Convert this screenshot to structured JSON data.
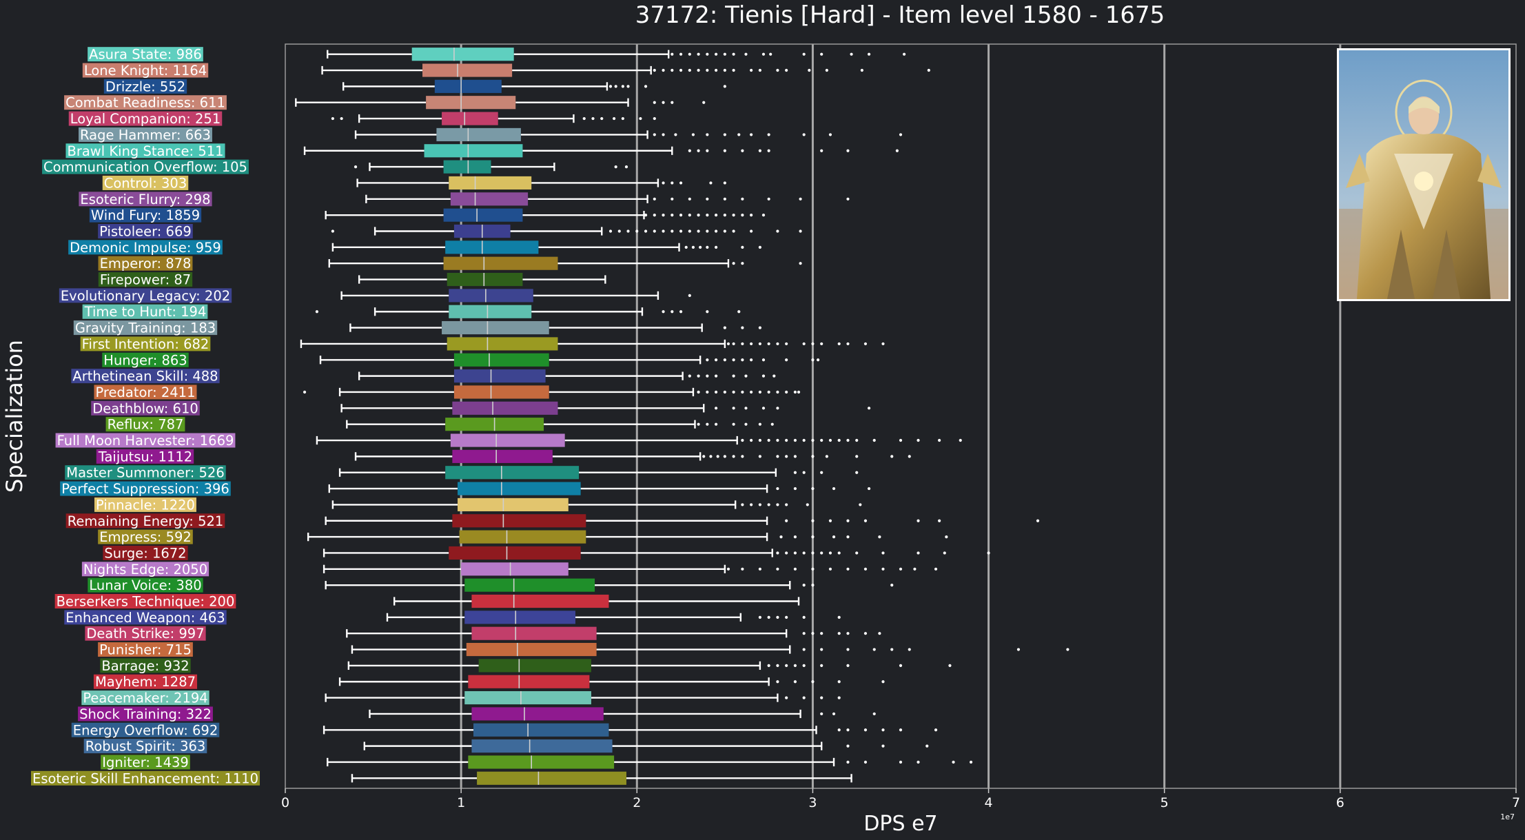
{
  "chart_data": {
    "type": "box",
    "title": "37172: Tienis [Hard] - Item level 1580 - 1675",
    "xlabel": "DPS e7",
    "ylabel": "Specialization",
    "offset_text": "1e7",
    "xlim": [
      0,
      7
    ],
    "xticks": [
      "0",
      "1",
      "2",
      "3",
      "4",
      "5",
      "6",
      "7"
    ],
    "grid": "vertical",
    "units": "1e7 DPS",
    "series": [
      {
        "label": "Asura State: 986",
        "color": "#5fcfbf",
        "whislo": 0.24,
        "q1": 0.72,
        "med": 0.96,
        "q3": 1.3,
        "whishi": 2.18,
        "fliers": [
          2.2,
          2.25,
          2.3,
          2.35,
          2.4,
          2.45,
          2.5,
          2.55,
          2.62,
          2.72,
          2.76,
          2.95,
          3.05,
          3.22,
          3.32,
          3.52
        ]
      },
      {
        "label": "Lone Knight: 1164",
        "color": "#c97e6e",
        "whislo": 0.21,
        "q1": 0.78,
        "med": 0.98,
        "q3": 1.29,
        "whishi": 2.08,
        "fliers": [
          2.1,
          2.15,
          2.2,
          2.25,
          2.3,
          2.35,
          2.4,
          2.45,
          2.5,
          2.55,
          2.65,
          2.7,
          2.8,
          2.85,
          2.98,
          3.08,
          3.28,
          3.66
        ]
      },
      {
        "label": "Drizzle: 552",
        "color": "#1f4f8f",
        "whislo": 0.33,
        "q1": 0.85,
        "med": 1.0,
        "q3": 1.23,
        "whishi": 1.83,
        "fliers": [
          1.85,
          1.88,
          1.92,
          1.95,
          2.05,
          2.5
        ]
      },
      {
        "label": "Combat Readiness: 611",
        "color": "#c88575",
        "whislo": 0.06,
        "q1": 0.8,
        "med": 1.0,
        "q3": 1.31,
        "whishi": 1.95,
        "fliers": [
          2.1,
          2.15,
          2.2,
          2.38
        ]
      },
      {
        "label": "Loyal Companion: 251",
        "color": "#c23e6a",
        "whislo": 0.42,
        "q1": 0.89,
        "med": 1.02,
        "q3": 1.21,
        "whishi": 1.64,
        "fliers": [
          0.27,
          0.32,
          1.7,
          1.75,
          1.8,
          1.87,
          1.92,
          2.02,
          2.1
        ]
      },
      {
        "label": "Rage Hammer: 663",
        "color": "#7a9aa6",
        "whislo": 0.4,
        "q1": 0.86,
        "med": 1.04,
        "q3": 1.34,
        "whishi": 2.06,
        "fliers": [
          2.1,
          2.15,
          2.22,
          2.32,
          2.4,
          2.5,
          2.58,
          2.65,
          2.75,
          2.95,
          3.1,
          3.5
        ]
      },
      {
        "label": "Brawl King Stance: 511",
        "color": "#4ac4b4",
        "whislo": 0.11,
        "q1": 0.79,
        "med": 1.04,
        "q3": 1.35,
        "whishi": 2.2,
        "fliers": [
          2.3,
          2.35,
          2.4,
          2.5,
          2.6,
          2.7,
          2.75,
          3.05,
          3.2,
          3.48
        ]
      },
      {
        "label": "Communication Overflow: 105",
        "color": "#1f8f80",
        "whislo": 0.48,
        "q1": 0.9,
        "med": 1.04,
        "q3": 1.17,
        "whishi": 1.53,
        "fliers": [
          0.4,
          1.88,
          1.94
        ]
      },
      {
        "label": "Control: 303",
        "color": "#d9c060",
        "whislo": 0.41,
        "q1": 0.93,
        "med": 1.08,
        "q3": 1.4,
        "whishi": 2.12,
        "fliers": [
          2.15,
          2.2,
          2.25,
          2.42,
          2.5
        ]
      },
      {
        "label": "Esoteric Flurry: 298",
        "color": "#8a4c99",
        "whislo": 0.46,
        "q1": 0.94,
        "med": 1.08,
        "q3": 1.38,
        "whishi": 2.06,
        "fliers": [
          2.1,
          2.2,
          2.3,
          2.4,
          2.5,
          2.6,
          2.75,
          2.93,
          3.2
        ]
      },
      {
        "label": "Wind Fury: 1859",
        "color": "#204f8f",
        "whislo": 0.23,
        "q1": 0.9,
        "med": 1.09,
        "q3": 1.35,
        "whishi": 2.04,
        "fliers": [
          2.05,
          2.1,
          2.15,
          2.2,
          2.25,
          2.3,
          2.35,
          2.4,
          2.45,
          2.5,
          2.55,
          2.6,
          2.65,
          2.72
        ]
      },
      {
        "label": "Pistoleer: 669",
        "color": "#3c3f8f",
        "whislo": 0.51,
        "q1": 0.96,
        "med": 1.12,
        "q3": 1.28,
        "whishi": 1.8,
        "fliers": [
          0.27,
          1.85,
          1.9,
          1.95,
          2.0,
          2.05,
          2.1,
          2.15,
          2.2,
          2.25,
          2.3,
          2.35,
          2.4,
          2.45,
          2.5,
          2.55,
          2.65,
          2.8,
          2.93
        ]
      },
      {
        "label": "Demonic Impulse: 959",
        "color": "#0f7fa6",
        "whislo": 0.27,
        "q1": 0.91,
        "med": 1.12,
        "q3": 1.44,
        "whishi": 2.24,
        "fliers": [
          2.28,
          2.32,
          2.36,
          2.4,
          2.45,
          2.6,
          2.7
        ]
      },
      {
        "label": "Emperor: 878",
        "color": "#9a7b22",
        "whislo": 0.25,
        "q1": 0.9,
        "med": 1.13,
        "q3": 1.55,
        "whishi": 2.52,
        "fliers": [
          2.55,
          2.6,
          2.93
        ]
      },
      {
        "label": "Firepower: 87",
        "color": "#2f5f1a",
        "whislo": 0.42,
        "q1": 0.92,
        "med": 1.13,
        "q3": 1.35,
        "whishi": 1.82,
        "fliers": []
      },
      {
        "label": "Evolutionary Legacy: 202",
        "color": "#3d4490",
        "whislo": 0.32,
        "q1": 0.93,
        "med": 1.14,
        "q3": 1.41,
        "whishi": 2.12,
        "fliers": [
          2.3
        ]
      },
      {
        "label": "Time to Hunt: 194",
        "color": "#5fbfaf",
        "whislo": 0.51,
        "q1": 0.93,
        "med": 1.15,
        "q3": 1.4,
        "whishi": 2.03,
        "fliers": [
          0.18,
          2.15,
          2.2,
          2.25,
          2.4,
          2.58
        ]
      },
      {
        "label": "Gravity Training: 183",
        "color": "#7b97a0",
        "whislo": 0.37,
        "q1": 0.89,
        "med": 1.15,
        "q3": 1.5,
        "whishi": 2.37,
        "fliers": [
          2.5,
          2.6,
          2.7
        ]
      },
      {
        "label": "First Intention: 682",
        "color": "#9a9a22",
        "whislo": 0.09,
        "q1": 0.92,
        "med": 1.15,
        "q3": 1.55,
        "whishi": 2.5,
        "fliers": [
          2.52,
          2.55,
          2.6,
          2.65,
          2.7,
          2.75,
          2.8,
          2.85,
          2.95,
          3.0,
          3.05,
          3.15,
          3.2,
          3.3,
          3.4
        ]
      },
      {
        "label": "Hunger: 863",
        "color": "#1f8f2a",
        "whislo": 0.2,
        "q1": 0.96,
        "med": 1.16,
        "q3": 1.5,
        "whishi": 2.36,
        "fliers": [
          2.4,
          2.45,
          2.5,
          2.55,
          2.6,
          2.65,
          2.72,
          2.85,
          3.0,
          3.03
        ]
      },
      {
        "label": "Arthetinean Skill: 488",
        "color": "#3d4490",
        "whislo": 0.42,
        "q1": 0.96,
        "med": 1.17,
        "q3": 1.48,
        "whishi": 2.26,
        "fliers": [
          2.3,
          2.35,
          2.4,
          2.45,
          2.55,
          2.62,
          2.72,
          2.78
        ]
      },
      {
        "label": "Predator: 2411",
        "color": "#c56a3e",
        "whislo": 0.31,
        "q1": 0.96,
        "med": 1.17,
        "q3": 1.5,
        "whishi": 2.32,
        "fliers": [
          0.11,
          2.35,
          2.4,
          2.45,
          2.5,
          2.55,
          2.6,
          2.65,
          2.7,
          2.75,
          2.8,
          2.85,
          2.9,
          2.92
        ]
      },
      {
        "label": "Deathblow: 610",
        "color": "#7c3f8f",
        "whislo": 0.32,
        "q1": 0.95,
        "med": 1.18,
        "q3": 1.55,
        "whishi": 2.38,
        "fliers": [
          2.45,
          2.55,
          2.62,
          2.72,
          2.8,
          3.32
        ]
      },
      {
        "label": "Reflux: 787",
        "color": "#5a9a1f",
        "whislo": 0.35,
        "q1": 0.91,
        "med": 1.19,
        "q3": 1.47,
        "whishi": 2.33,
        "fliers": [
          2.35,
          2.4,
          2.45,
          2.55,
          2.62,
          2.7,
          2.77
        ]
      },
      {
        "label": "Full Moon Harvester: 1669",
        "color": "#b77ac9",
        "whislo": 0.18,
        "q1": 0.94,
        "med": 1.2,
        "q3": 1.59,
        "whishi": 2.57,
        "fliers": [
          2.6,
          2.65,
          2.7,
          2.75,
          2.8,
          2.85,
          2.9,
          2.95,
          3.0,
          3.05,
          3.1,
          3.15,
          3.2,
          3.25,
          3.35,
          3.5,
          3.6,
          3.72,
          3.84
        ]
      },
      {
        "label": "Taijutsu: 1112",
        "color": "#8f1a8f",
        "whislo": 0.4,
        "q1": 0.95,
        "med": 1.2,
        "q3": 1.52,
        "whishi": 2.36,
        "fliers": [
          2.38,
          2.42,
          2.46,
          2.5,
          2.55,
          2.6,
          2.7,
          2.8,
          2.85,
          2.9,
          3.0,
          3.08,
          3.25,
          3.45,
          3.55
        ]
      },
      {
        "label": "Master Summoner: 526",
        "color": "#1f8f7f",
        "whislo": 0.31,
        "q1": 0.91,
        "med": 1.23,
        "q3": 1.67,
        "whishi": 2.79,
        "fliers": [
          2.9,
          2.95,
          3.05,
          3.25
        ]
      },
      {
        "label": "Perfect Suppression: 396",
        "color": "#0f80a6",
        "whislo": 0.25,
        "q1": 0.98,
        "med": 1.23,
        "q3": 1.68,
        "whishi": 2.74,
        "fliers": [
          2.8,
          2.9,
          3.0,
          3.12,
          3.32
        ]
      },
      {
        "label": "Pinnacle: 1220",
        "color": "#e2c56e",
        "whislo": 0.27,
        "q1": 0.98,
        "med": 1.24,
        "q3": 1.61,
        "whishi": 2.56,
        "fliers": [
          2.6,
          2.65,
          2.7,
          2.75,
          2.8,
          2.85,
          2.97,
          3.27
        ]
      },
      {
        "label": "Remaining Energy: 521",
        "color": "#8f1a1f",
        "whislo": 0.23,
        "q1": 0.95,
        "med": 1.24,
        "q3": 1.71,
        "whishi": 2.74,
        "fliers": [
          2.85,
          3.0,
          3.1,
          3.2,
          3.3,
          3.6,
          3.72,
          4.28
        ]
      },
      {
        "label": "Empress: 592",
        "color": "#9a8a22",
        "whislo": 0.13,
        "q1": 0.99,
        "med": 1.26,
        "q3": 1.71,
        "whishi": 2.74,
        "fliers": [
          2.82,
          2.9,
          3.0,
          3.12,
          3.2,
          3.38,
          3.76
        ]
      },
      {
        "label": "Surge: 1672",
        "color": "#8f1a1f",
        "whislo": 0.22,
        "q1": 0.93,
        "med": 1.26,
        "q3": 1.68,
        "whishi": 2.77,
        "fliers": [
          2.8,
          2.85,
          2.9,
          2.95,
          3.0,
          3.05,
          3.1,
          3.15,
          3.25,
          3.4,
          3.6,
          3.75,
          4.0
        ]
      },
      {
        "label": "Nights Edge: 2050",
        "color": "#b77ac9",
        "whislo": 0.22,
        "q1": 1.0,
        "med": 1.28,
        "q3": 1.61,
        "whishi": 2.5,
        "fliers": [
          2.52,
          2.6,
          2.7,
          2.8,
          2.9,
          3.0,
          3.1,
          3.2,
          3.3,
          3.4,
          3.5,
          3.58,
          3.7
        ]
      },
      {
        "label": "Lunar Voice: 380",
        "color": "#1f8f2a",
        "whislo": 0.23,
        "q1": 1.02,
        "med": 1.3,
        "q3": 1.76,
        "whishi": 2.87,
        "fliers": [
          2.95,
          3.0,
          3.45
        ]
      },
      {
        "label": "Berserkers Technique: 200",
        "color": "#c9303e",
        "whislo": 0.62,
        "q1": 1.06,
        "med": 1.3,
        "q3": 1.84,
        "whishi": 2.92,
        "fliers": []
      },
      {
        "label": "Enhanced Weapon: 463",
        "color": "#3d4498",
        "whislo": 0.58,
        "q1": 1.02,
        "med": 1.31,
        "q3": 1.65,
        "whishi": 2.59,
        "fliers": [
          2.7,
          2.75,
          2.8,
          2.85,
          2.95,
          3.15
        ]
      },
      {
        "label": "Death Strike: 997",
        "color": "#c23e6a",
        "whislo": 0.35,
        "q1": 1.06,
        "med": 1.31,
        "q3": 1.77,
        "whishi": 2.85,
        "fliers": [
          2.95,
          3.0,
          3.05,
          3.15,
          3.2,
          3.3,
          3.38
        ]
      },
      {
        "label": "Punisher: 715",
        "color": "#c56a3e",
        "whislo": 0.38,
        "q1": 1.03,
        "med": 1.32,
        "q3": 1.77,
        "whishi": 2.87,
        "fliers": [
          2.95,
          3.05,
          3.2,
          3.35,
          3.45,
          3.55,
          4.17,
          4.45
        ]
      },
      {
        "label": "Barrage: 932",
        "color": "#2f5f1a",
        "whislo": 0.36,
        "q1": 1.1,
        "med": 1.33,
        "q3": 1.74,
        "whishi": 2.7,
        "fliers": [
          2.75,
          2.8,
          2.85,
          2.9,
          2.95,
          3.05,
          3.2,
          3.5,
          3.78
        ]
      },
      {
        "label": "Mayhem: 1287",
        "color": "#c9303e",
        "whislo": 0.31,
        "q1": 1.04,
        "med": 1.33,
        "q3": 1.73,
        "whishi": 2.75,
        "fliers": [
          2.8,
          2.9,
          3.0,
          3.15,
          3.4
        ]
      },
      {
        "label": "Peacemaker: 2194",
        "color": "#6fc4b4",
        "whislo": 0.23,
        "q1": 1.02,
        "med": 1.34,
        "q3": 1.74,
        "whishi": 2.8,
        "fliers": [
          2.85,
          2.95,
          3.05,
          3.15
        ]
      },
      {
        "label": "Shock Training: 322",
        "color": "#8f1a8f",
        "whislo": 0.48,
        "q1": 1.06,
        "med": 1.36,
        "q3": 1.81,
        "whishi": 2.93,
        "fliers": [
          3.05,
          3.12,
          3.35
        ]
      },
      {
        "label": "Energy Overflow: 692",
        "color": "#2f5f8f",
        "whislo": 0.22,
        "q1": 1.07,
        "med": 1.38,
        "q3": 1.84,
        "whishi": 3.02,
        "fliers": [
          3.15,
          3.2,
          3.3,
          3.4,
          3.5,
          3.7
        ]
      },
      {
        "label": "Robust Spirit: 363",
        "color": "#3e6a9a",
        "whislo": 0.45,
        "q1": 1.06,
        "med": 1.39,
        "q3": 1.86,
        "whishi": 3.05,
        "fliers": [
          3.2,
          3.4,
          3.65
        ]
      },
      {
        "label": "Igniter: 1439",
        "color": "#5a9a1f",
        "whislo": 0.24,
        "q1": 1.04,
        "med": 1.4,
        "q3": 1.87,
        "whishi": 3.12,
        "fliers": [
          3.2,
          3.3,
          3.5,
          3.6,
          3.8,
          3.9
        ]
      },
      {
        "label": "Esoteric Skill Enhancement: 1110",
        "color": "#8f8f22",
        "whislo": 0.38,
        "q1": 1.09,
        "med": 1.44,
        "q3": 1.94,
        "whishi": 3.22,
        "fliers": []
      }
    ]
  }
}
